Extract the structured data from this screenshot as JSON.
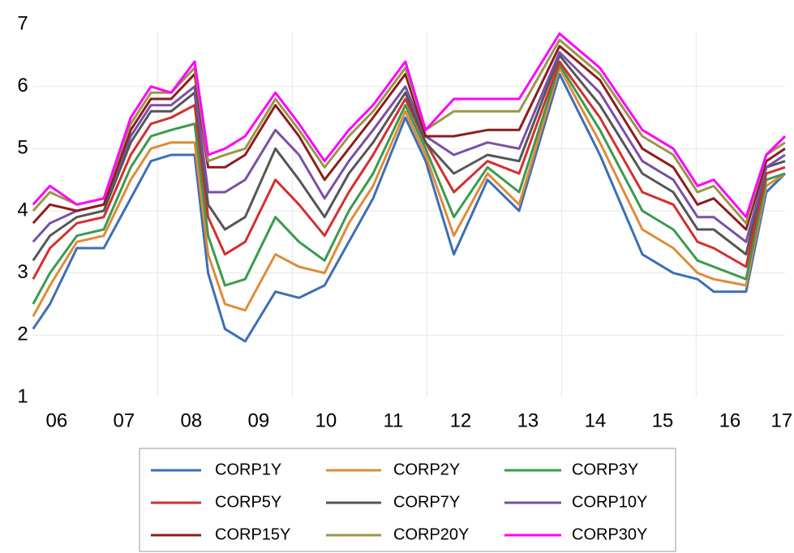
{
  "chart_data": {
    "type": "line",
    "x": [
      6.15,
      6.4,
      6.8,
      7.2,
      7.6,
      7.9,
      8.2,
      8.55,
      8.75,
      9.0,
      9.3,
      9.75,
      10.1,
      10.48,
      10.84,
      11.2,
      11.68,
      11.98,
      12.4,
      12.9,
      13.37,
      13.97,
      14.57,
      15.2,
      15.66,
      16.02,
      16.26,
      16.74,
      17.04,
      17.32
    ],
    "xlim": [
      6.14,
      17.32
    ],
    "xticks": [
      {
        "value": 6.5,
        "label": "06"
      },
      {
        "value": 7.5,
        "label": "07"
      },
      {
        "value": 8.5,
        "label": "08"
      },
      {
        "value": 9.5,
        "label": "09"
      },
      {
        "value": 10.5,
        "label": "10"
      },
      {
        "value": 11.5,
        "label": "11"
      },
      {
        "value": 12.5,
        "label": "12"
      },
      {
        "value": 13.5,
        "label": "13"
      },
      {
        "value": 14.5,
        "label": "14"
      },
      {
        "value": 15.5,
        "label": "15"
      },
      {
        "value": 16.5,
        "label": "16"
      },
      {
        "value": 17.27,
        "label": "17"
      }
    ],
    "xgrid_lines": [
      8,
      10,
      12,
      14,
      16
    ],
    "ylim": [
      1,
      7
    ],
    "yticks": [
      1,
      2,
      3,
      4,
      5,
      6,
      7
    ],
    "grid": true,
    "series": [
      {
        "name": "CORP1Y",
        "color": "#3d6eb5",
        "values": [
          2.1,
          2.5,
          3.4,
          3.4,
          4.2,
          4.8,
          4.9,
          4.9,
          3.0,
          2.1,
          1.9,
          2.7,
          2.6,
          2.8,
          3.5,
          4.2,
          5.5,
          4.8,
          3.3,
          4.5,
          4.0,
          6.2,
          4.9,
          3.3,
          3.0,
          2.9,
          2.7,
          2.7,
          4.3,
          4.6
        ]
      },
      {
        "name": "CORP2Y",
        "color": "#e08a3a",
        "values": [
          2.3,
          2.8,
          3.5,
          3.6,
          4.5,
          5.0,
          5.1,
          5.1,
          3.3,
          2.5,
          2.4,
          3.3,
          3.1,
          3.0,
          3.8,
          4.4,
          5.6,
          4.9,
          3.6,
          4.6,
          4.1,
          6.3,
          5.1,
          3.7,
          3.4,
          3.0,
          2.9,
          2.8,
          4.4,
          4.6
        ]
      },
      {
        "name": "CORP3Y",
        "color": "#3a9a4e",
        "values": [
          2.5,
          3.0,
          3.6,
          3.7,
          4.7,
          5.2,
          5.3,
          5.4,
          3.6,
          2.8,
          2.9,
          3.9,
          3.5,
          3.2,
          4.0,
          4.6,
          5.7,
          5.0,
          3.9,
          4.7,
          4.3,
          6.35,
          5.3,
          4.0,
          3.7,
          3.2,
          3.1,
          2.9,
          4.5,
          4.6
        ]
      },
      {
        "name": "CORP5Y",
        "color": "#d42f2f",
        "values": [
          2.9,
          3.4,
          3.8,
          3.9,
          4.9,
          5.4,
          5.5,
          5.7,
          3.9,
          3.3,
          3.5,
          4.5,
          4.1,
          3.6,
          4.3,
          4.9,
          5.8,
          5.1,
          4.3,
          4.8,
          4.6,
          6.4,
          5.5,
          4.3,
          4.1,
          3.5,
          3.4,
          3.1,
          4.6,
          4.7
        ]
      },
      {
        "name": "CORP7Y",
        "color": "#555555",
        "values": [
          3.2,
          3.6,
          3.9,
          4.0,
          5.1,
          5.6,
          5.6,
          5.9,
          4.1,
          3.7,
          3.9,
          5.0,
          4.5,
          3.9,
          4.6,
          5.1,
          5.9,
          5.1,
          4.6,
          4.9,
          4.8,
          6.5,
          5.7,
          4.6,
          4.3,
          3.7,
          3.7,
          3.3,
          4.7,
          4.8
        ]
      },
      {
        "name": "CORP10Y",
        "color": "#7a4fa8",
        "values": [
          3.5,
          3.8,
          4.0,
          4.1,
          5.2,
          5.7,
          5.7,
          6.0,
          4.3,
          4.3,
          4.5,
          5.3,
          4.9,
          4.2,
          4.8,
          5.3,
          6.0,
          5.2,
          4.9,
          5.1,
          5.0,
          6.55,
          5.9,
          4.8,
          4.5,
          3.9,
          3.9,
          3.5,
          4.7,
          4.9
        ]
      },
      {
        "name": "CORP15Y",
        "color": "#8b1e1e",
        "values": [
          3.8,
          4.1,
          4.0,
          4.1,
          5.3,
          5.8,
          5.8,
          6.2,
          4.7,
          4.7,
          4.9,
          5.7,
          5.2,
          4.5,
          5.0,
          5.5,
          6.2,
          5.2,
          5.2,
          5.3,
          5.3,
          6.65,
          6.1,
          5.0,
          4.7,
          4.1,
          4.2,
          3.7,
          4.8,
          5.0
        ]
      },
      {
        "name": "CORP20Y",
        "color": "#9a9646",
        "values": [
          4.0,
          4.3,
          4.1,
          4.2,
          5.4,
          5.9,
          5.9,
          6.3,
          4.8,
          4.9,
          5.0,
          5.8,
          5.3,
          4.7,
          5.2,
          5.6,
          6.3,
          5.3,
          5.6,
          5.6,
          5.6,
          6.75,
          6.2,
          5.2,
          4.9,
          4.3,
          4.4,
          3.8,
          4.9,
          5.1
        ]
      },
      {
        "name": "CORP30Y",
        "color": "#ff00ff",
        "values": [
          4.1,
          4.4,
          4.1,
          4.2,
          5.5,
          6.0,
          5.9,
          6.4,
          4.9,
          5.0,
          5.2,
          5.9,
          5.4,
          4.8,
          5.3,
          5.7,
          6.4,
          5.3,
          5.8,
          5.8,
          5.8,
          6.85,
          6.3,
          5.3,
          5.0,
          4.4,
          4.5,
          3.9,
          4.9,
          5.2
        ]
      }
    ]
  }
}
